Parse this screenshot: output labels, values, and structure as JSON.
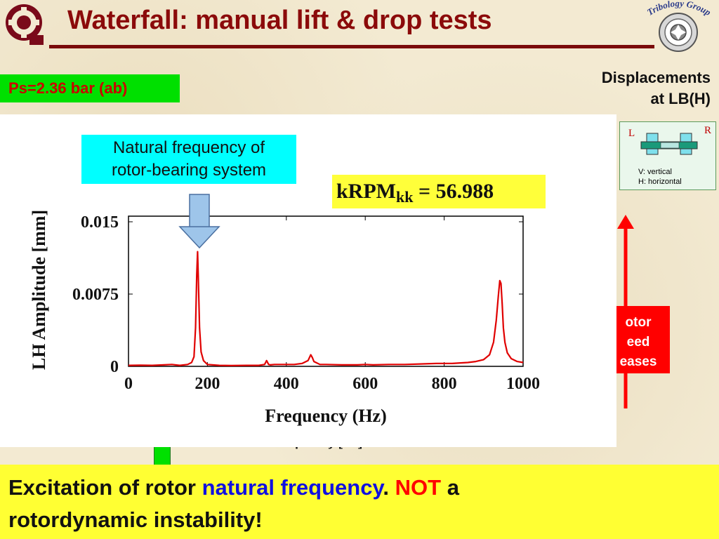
{
  "slide": {
    "title": "Waterfall: manual lift & drop tests",
    "logo_right_text": "Tribology Group"
  },
  "supply_pressure_badge": "Ps=2.36 bar (ab)",
  "displacement_label": {
    "line1": "Displacements",
    "line2": "at LB(H)"
  },
  "bearing_diagram": {
    "left_label": "L",
    "right_label": "R",
    "vertical_label": "V: vertical",
    "horizontal_label": "H: horizontal"
  },
  "speed_box": {
    "line1": "otor",
    "line2": "eed",
    "line3": "eases"
  },
  "callout": {
    "line1": "Natural frequency of",
    "line2": "rotor-bearing system"
  },
  "krpm": {
    "label": "kRPM",
    "subscript": "kk",
    "equals": " = ",
    "value": "56.988"
  },
  "peeking_label": "Frequency [Hz]",
  "bottom": {
    "part1": "Excitation of rotor ",
    "part2": "natural frequency",
    "part3": ". ",
    "part4": "NOT",
    "part5": " a",
    "line2": "rotordynamic instability!"
  },
  "colors": {
    "title": "#8b0a0a",
    "trace": "#e00000",
    "badge_green": "#00e000",
    "callout_cyan": "#00ffff",
    "highlight_yellow": "#ffff33",
    "speed_red": "#ff0000",
    "arrow_blue": "#9ec5ea"
  },
  "chart_data": {
    "type": "line",
    "xlabel": "Frequency (Hz)",
    "ylabel": "LH Amplitude [mm]",
    "xlim": [
      0,
      1000
    ],
    "ylim": [
      0,
      0.015
    ],
    "xticks": [
      0,
      200,
      400,
      600,
      800,
      1000
    ],
    "yticks": [
      0,
      0.0075,
      0.015
    ],
    "ytick_labels": [
      "0",
      "0.0075",
      "0.015"
    ],
    "grid": false,
    "series": [
      {
        "x": [
          0,
          30,
          60,
          90,
          110,
          130,
          150,
          160,
          166,
          170,
          173,
          175,
          177,
          180,
          184,
          190,
          200,
          230,
          260,
          300,
          330,
          345,
          350,
          355,
          360,
          370,
          400,
          420,
          440,
          455,
          462,
          466,
          470,
          475,
          485,
          500,
          540,
          580,
          600,
          620,
          660,
          700,
          740,
          780,
          820,
          860,
          880,
          900,
          915,
          925,
          932,
          937,
          941,
          944,
          947,
          950,
          954,
          960,
          970,
          985,
          1000
        ],
        "y": [
          0.0001,
          0.00012,
          0.0001,
          0.00015,
          0.0002,
          0.0001,
          0.0002,
          0.0004,
          0.001,
          0.004,
          0.0095,
          0.0119,
          0.009,
          0.004,
          0.0015,
          0.0006,
          0.0002,
          0.0001,
          8e-05,
          0.0001,
          0.0001,
          0.0002,
          0.0006,
          0.0002,
          0.00015,
          0.0002,
          0.0002,
          0.0002,
          0.0003,
          0.0006,
          0.0012,
          0.0009,
          0.0005,
          0.0004,
          0.0002,
          0.0002,
          0.00015,
          0.00015,
          0.0002,
          0.00015,
          0.0002,
          0.0002,
          0.00025,
          0.0003,
          0.0003,
          0.0004,
          0.0005,
          0.0007,
          0.0012,
          0.0025,
          0.0048,
          0.0072,
          0.0089,
          0.0086,
          0.0065,
          0.004,
          0.0025,
          0.0014,
          0.0008,
          0.0005,
          0.0004
        ]
      }
    ]
  }
}
